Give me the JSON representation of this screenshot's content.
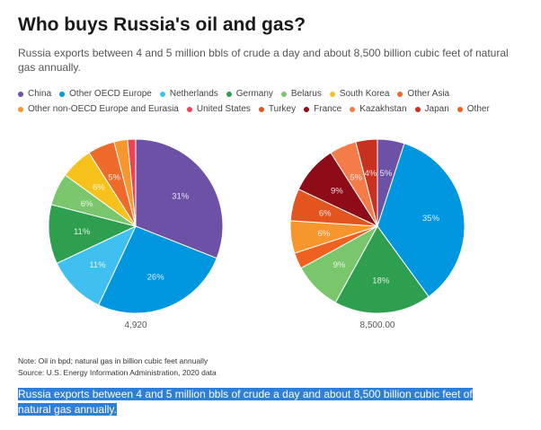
{
  "title": "Who buys Russia's oil and gas?",
  "subtitle": "Russia exports between 4 and 5 million bbls of crude a day and about 8,500 billion cubic feet of natural gas annually.",
  "legend": [
    {
      "name": "China",
      "color": "#6c51a7"
    },
    {
      "name": "Other OECD Europe",
      "color": "#0096e0"
    },
    {
      "name": "Netherlands",
      "color": "#3fc0f0"
    },
    {
      "name": "Germany",
      "color": "#2e9e4f"
    },
    {
      "name": "Belarus",
      "color": "#79c66d"
    },
    {
      "name": "South Korea",
      "color": "#f5c11a"
    },
    {
      "name": "Other Asia",
      "color": "#ee6a2b"
    },
    {
      "name": "Other non-OECD Europe and Eurasia",
      "color": "#f6962c"
    },
    {
      "name": "United States",
      "color": "#ee4355"
    },
    {
      "name": "Turkey",
      "color": "#e2551f"
    },
    {
      "name": "France",
      "color": "#8e0c18"
    },
    {
      "name": "Kazakhstan",
      "color": "#f47c48"
    },
    {
      "name": "Japan",
      "color": "#c8301f"
    },
    {
      "name": "Other",
      "color": "#ef6121"
    }
  ],
  "chart_data": [
    {
      "type": "pie",
      "total_label": "4,920",
      "slices": [
        {
          "name": "China",
          "value": 31,
          "label": "31%",
          "color": "#6c51a7"
        },
        {
          "name": "Other OECD Europe",
          "value": 26,
          "label": "26%",
          "color": "#0096e0"
        },
        {
          "name": "Netherlands",
          "value": 11,
          "label": "11%",
          "color": "#3fc0f0"
        },
        {
          "name": "Germany",
          "value": 11,
          "label": "11%",
          "color": "#2e9e4f"
        },
        {
          "name": "Belarus",
          "value": 6,
          "label": "6%",
          "color": "#79c66d"
        },
        {
          "name": "South Korea",
          "value": 6,
          "label": "6%",
          "color": "#f5c11a"
        },
        {
          "name": "Other Asia",
          "value": 5,
          "label": "5%",
          "color": "#ee6a2b"
        },
        {
          "name": "Other non-OECD Europe and Eurasia",
          "value": 2.5,
          "label": "",
          "color": "#f6962c"
        },
        {
          "name": "United States",
          "value": 1.5,
          "label": "",
          "color": "#ee4355"
        }
      ]
    },
    {
      "type": "pie",
      "total_label": "8,500.00",
      "slices": [
        {
          "name": "China",
          "value": 5,
          "label": "5%",
          "color": "#6c51a7"
        },
        {
          "name": "Other OECD Europe",
          "value": 35,
          "label": "35%",
          "color": "#0096e0"
        },
        {
          "name": "Germany",
          "value": 18,
          "label": "18%",
          "color": "#2e9e4f"
        },
        {
          "name": "Belarus",
          "value": 9,
          "label": "9%",
          "color": "#79c66d"
        },
        {
          "name": "Other",
          "value": 3,
          "label": "",
          "color": "#ef6121"
        },
        {
          "name": "Other non-OECD Europe and Eurasia",
          "value": 6,
          "label": "6%",
          "color": "#f6962c"
        },
        {
          "name": "Turkey",
          "value": 6,
          "label": "6%",
          "color": "#e2551f"
        },
        {
          "name": "France",
          "value": 9,
          "label": "9%",
          "color": "#8e0c18"
        },
        {
          "name": "Kazakhstan",
          "value": 5,
          "label": "5%",
          "color": "#f47c48"
        },
        {
          "name": "Japan",
          "value": 4,
          "label": "4%",
          "color": "#c8301f"
        }
      ]
    }
  ],
  "note": "Note: Oil in bpd; natural gas in billion cubic feet annually",
  "source": "Source: U.S. Energy Information Administration, 2020 data",
  "caption": "Russia exports between 4 and 5 million bbls of crude a day and about 8,500 billion cubic feet of natural gas annually."
}
